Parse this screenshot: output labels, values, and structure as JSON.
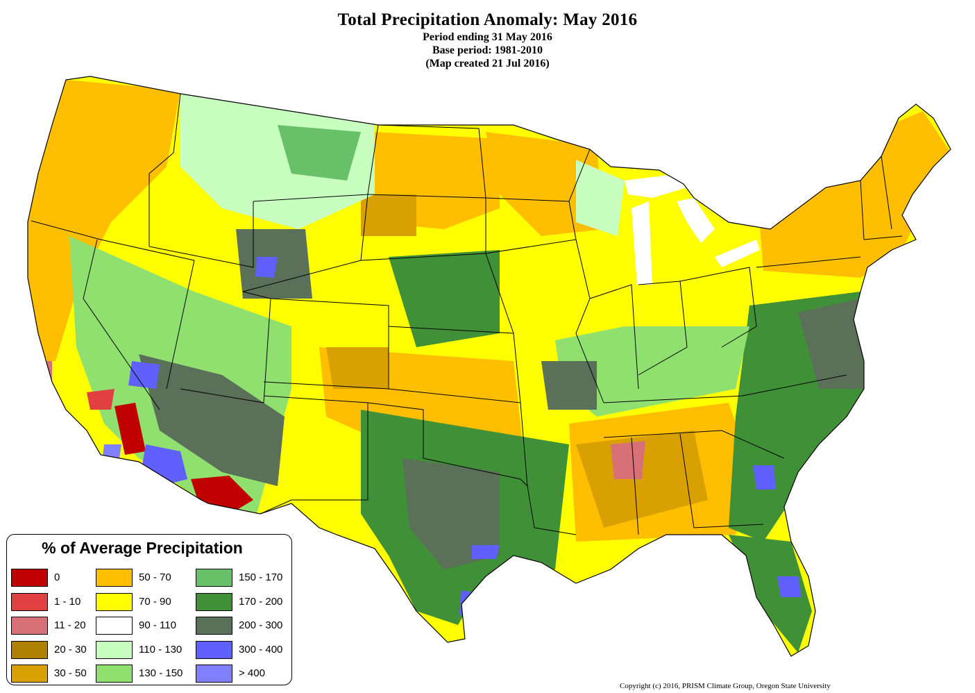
{
  "header": {
    "title": "Total Precipitation Anomaly: May 2016",
    "line1": "Period ending 31 May 2016",
    "line2": "Base period: 1981-2010",
    "line3": "(Map created 21 Jul 2016)"
  },
  "legend": {
    "title": "% of Average Precipitation",
    "items": [
      {
        "label": "0",
        "color": "#c00000"
      },
      {
        "label": "1 - 10",
        "color": "#e04040"
      },
      {
        "label": "11 - 20",
        "color": "#d87078"
      },
      {
        "label": "20 - 30",
        "color": "#b08000"
      },
      {
        "label": "30 - 50",
        "color": "#d8a000"
      },
      {
        "label": "50 - 70",
        "color": "#ffbf00"
      },
      {
        "label": "70 - 90",
        "color": "#ffff00"
      },
      {
        "label": "90 - 110",
        "color": "#ffffff"
      },
      {
        "label": "110 - 130",
        "color": "#c8ffc0"
      },
      {
        "label": "130 - 150",
        "color": "#90e070"
      },
      {
        "label": "150 - 170",
        "color": "#68c068"
      },
      {
        "label": "170 - 200",
        "color": "#409038"
      },
      {
        "label": "200 - 300",
        "color": "#5a7058"
      },
      {
        "label": "300 - 400",
        "color": "#6060ff"
      },
      {
        "label": "> 400",
        "color": "#8080ff"
      }
    ]
  },
  "copyright": "Copyright (c) 2016, PRISM Climate Group, Oregon State University"
}
